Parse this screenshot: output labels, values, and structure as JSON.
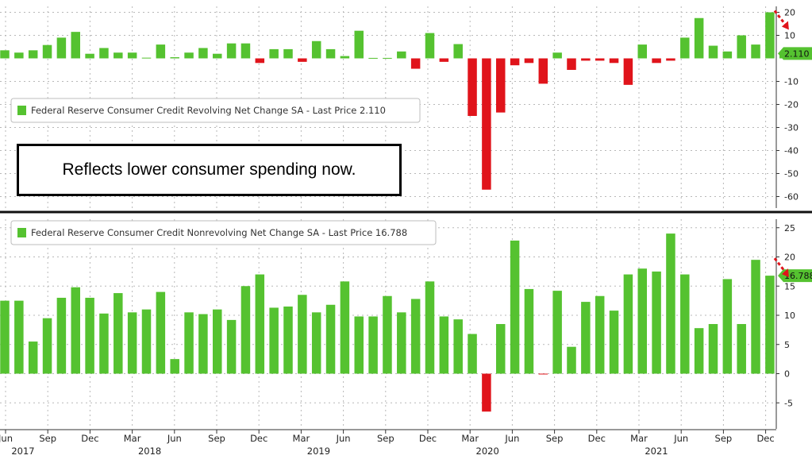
{
  "annotation": "Reflects lower consumer spending now.",
  "colors": {
    "positive": "#55c230",
    "negative": "#e0141b",
    "arrow": "#e0141b",
    "grid": "#b8b8b8"
  },
  "x_axis": {
    "months": [
      {
        "label": "Jun",
        "year": "2017"
      },
      {
        "label": "Sep",
        "year": ""
      },
      {
        "label": "Dec",
        "year": ""
      },
      {
        "label": "Mar",
        "year": "2018"
      },
      {
        "label": "Jun",
        "year": ""
      },
      {
        "label": "Sep",
        "year": ""
      },
      {
        "label": "Dec",
        "year": ""
      },
      {
        "label": "Mar",
        "year": "2019"
      },
      {
        "label": "Jun",
        "year": ""
      },
      {
        "label": "Sep",
        "year": ""
      },
      {
        "label": "Dec",
        "year": ""
      },
      {
        "label": "Mar",
        "year": "2020"
      },
      {
        "label": "Jun",
        "year": ""
      },
      {
        "label": "Sep",
        "year": ""
      },
      {
        "label": "Dec",
        "year": ""
      },
      {
        "label": "Mar",
        "year": "2021"
      },
      {
        "label": "Jun",
        "year": ""
      },
      {
        "label": "Sep",
        "year": ""
      },
      {
        "label": "Dec",
        "year": ""
      }
    ]
  },
  "chart_data": [
    {
      "type": "bar",
      "legend": "Federal Reserve Consumer Credit Revolving Net Change SA - Last Price 2.110",
      "last_value_label": "2.110",
      "ylim": [
        -62,
        22
      ],
      "yticks": [
        20,
        10,
        -10,
        -20,
        -30,
        -40,
        -50,
        -60
      ],
      "values": [
        3.5,
        2.5,
        3.5,
        5.8,
        9.0,
        11.5,
        2.0,
        4.5,
        2.5,
        2.5,
        0.3,
        6.0,
        0.5,
        2.5,
        4.5,
        2.0,
        6.5,
        6.5,
        -2.0,
        4.0,
        4.0,
        -1.5,
        7.5,
        4.0,
        1.0,
        12.0,
        0.2,
        0.2,
        3.0,
        -4.5,
        11.0,
        -1.5,
        6.2,
        -25.0,
        -57.0,
        -23.5,
        -3.0,
        -2.0,
        -11.0,
        2.5,
        -5.0,
        -1.0,
        -1.0,
        -2.0,
        -11.5,
        6.0,
        -2.0,
        -1.0,
        9.0,
        17.5,
        5.5,
        3.0,
        10.0,
        6.0,
        20.0,
        2.11
      ]
    },
    {
      "type": "bar",
      "legend": "Federal Reserve Consumer Credit Nonrevolving Net Change SA - Last Price 16.788",
      "last_value_label": "16.788",
      "ylim": [
        -7,
        26
      ],
      "yticks": [
        25,
        20,
        15,
        10,
        5,
        0,
        -5
      ],
      "values": [
        12.5,
        12.5,
        5.5,
        9.5,
        13.0,
        14.8,
        13.0,
        10.3,
        13.8,
        10.5,
        11.0,
        14.0,
        2.5,
        10.5,
        10.2,
        11.0,
        9.2,
        15.0,
        17.0,
        11.3,
        11.5,
        13.5,
        10.5,
        11.8,
        15.8,
        9.8,
        9.8,
        13.3,
        10.5,
        12.8,
        15.8,
        9.8,
        9.3,
        6.8,
        -6.5,
        8.5,
        22.8,
        14.5,
        -0.1,
        14.2,
        4.6,
        12.3,
        13.3,
        10.8,
        17.0,
        18.0,
        17.5,
        24.0,
        17.0,
        7.8,
        8.5,
        16.2,
        8.5,
        19.5,
        16.788
      ]
    }
  ]
}
